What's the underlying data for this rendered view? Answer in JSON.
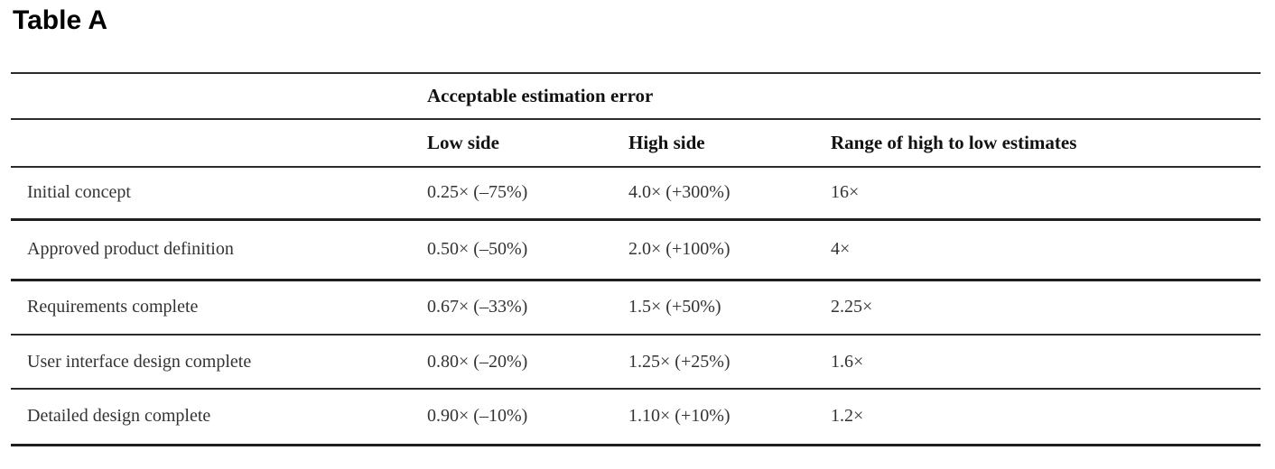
{
  "title": "Table A",
  "table": {
    "group_header": "Acceptable estimation error",
    "column_headers": {
      "row_label": "",
      "low": "Low side",
      "high": "High side",
      "range": "Range of high to low estimates"
    },
    "rows": [
      {
        "phase": "Initial concept",
        "low": "0.25× (–75%)",
        "high": "4.0× (+300%)",
        "range": "16×"
      },
      {
        "phase": "Approved product definition",
        "low": "0.50× (–50%)",
        "high": "2.0× (+100%)",
        "range": "4×"
      },
      {
        "phase": "Requirements complete",
        "low": "0.67× (–33%)",
        "high": "1.5× (+50%)",
        "range": "2.25×"
      },
      {
        "phase": "User interface design complete",
        "low": "0.80× (–20%)",
        "high": "1.25× (+25%)",
        "range": "1.6×"
      },
      {
        "phase": "Detailed design complete",
        "low": "0.90× (–10%)",
        "high": "1.10× (+10%)",
        "range": "1.2×"
      }
    ]
  }
}
